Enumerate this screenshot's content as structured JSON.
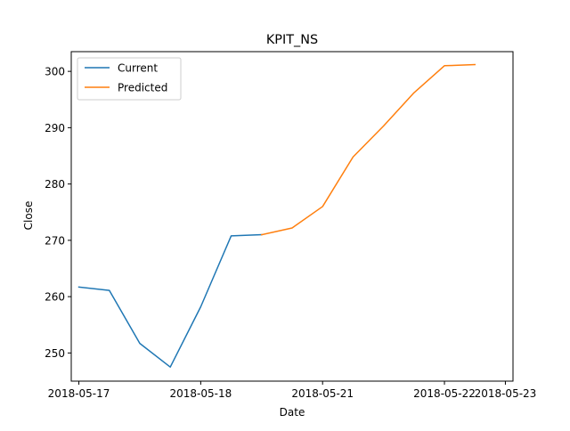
{
  "chart_data": {
    "type": "line",
    "title": "KPIT_NS",
    "xlabel": "Date",
    "ylabel": "Close",
    "x_tick_labels": [
      "2018-05-17",
      "2018-05-18",
      "2018-05-21",
      "2018-05-22",
      "2018-05-23"
    ],
    "y_tick_labels": [
      "250",
      "260",
      "270",
      "280",
      "290",
      "300"
    ],
    "y_ticks": [
      250,
      260,
      270,
      280,
      290,
      300
    ],
    "ylim": [
      245.0,
      303.5
    ],
    "xlim": [
      -0.25,
      14.25
    ],
    "x_tick_positions": [
      0,
      4,
      8,
      12,
      14
    ],
    "legend_position": "top-left",
    "grid": false,
    "series": [
      {
        "name": "Current",
        "color": "#1f77b4",
        "x": [
          0,
          1,
          2,
          3,
          4,
          5,
          6
        ],
        "y": [
          261.7,
          261.1,
          251.7,
          247.5,
          258.2,
          270.8,
          271.0
        ]
      },
      {
        "name": "Predicted",
        "color": "#ff7f0e",
        "x": [
          6,
          7,
          8,
          9,
          10,
          11,
          12,
          13
        ],
        "y": [
          271.0,
          272.2,
          276.0,
          284.8,
          290.3,
          296.2,
          301.0,
          301.2
        ]
      }
    ]
  }
}
